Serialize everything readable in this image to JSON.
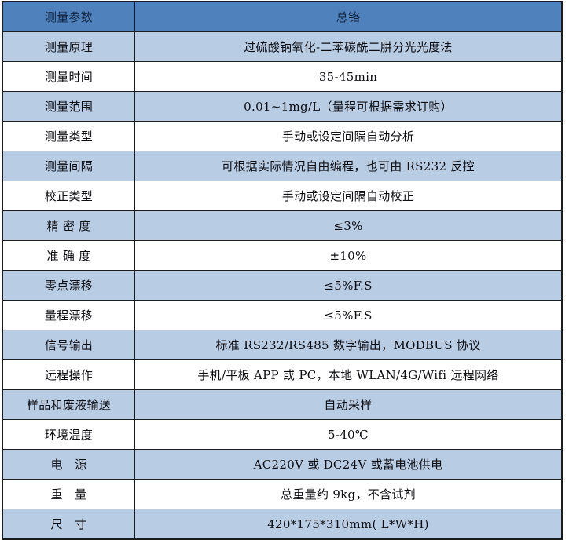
{
  "colors": {
    "header_bg": "#4f81bd",
    "alt_row_bg": "#b8cce4",
    "plain_row_bg": "#ffffff",
    "border": "#1c1c1c",
    "header_text": "#10243e",
    "body_text": "#0d0d12"
  },
  "table": {
    "header": {
      "param": "测量参数",
      "value": "总铬"
    },
    "rows": [
      {
        "param": "测量原理",
        "value": "过硫酸钠氧化-二苯碳酰二肼分光光度法"
      },
      {
        "param": "测量时间",
        "value": "35-45min"
      },
      {
        "param": "测量范围",
        "value": "0.01~1mg/L（量程可根据需求订购）"
      },
      {
        "param": "测量类型",
        "value": "手动或设定间隔自动分析"
      },
      {
        "param": "测量间隔",
        "value": "可根据实际情况自由编程，也可由 RS232 反控"
      },
      {
        "param": "校正类型",
        "value": "手动或设定间隔自动校正"
      },
      {
        "param": "精 密 度",
        "value": "≤3%"
      },
      {
        "param": "准 确 度",
        "value": "±10%"
      },
      {
        "param": "零点漂移",
        "value": "≤5%F.S"
      },
      {
        "param": "量程漂移",
        "value": "≤5%F.S"
      },
      {
        "param": "信号输出",
        "value": "标准 RS232/RS485 数字输出，MODBUS 协议"
      },
      {
        "param": "远程操作",
        "value": "手机/平板 APP 或 PC，本地 WLAN/4G/Wifi 远程网络"
      },
      {
        "param": "样品和废液输送",
        "value": "自动采样"
      },
      {
        "param": "环境温度",
        "value": "5-40℃"
      },
      {
        "param": "电　源",
        "value": "AC220V 或 DC24V 或蓄电池供电"
      },
      {
        "param": "重　量",
        "value": "总重量约 9kg，不含试剂"
      },
      {
        "param": "尺　寸",
        "value": "420*175*310mm( L*W*H)"
      }
    ]
  }
}
